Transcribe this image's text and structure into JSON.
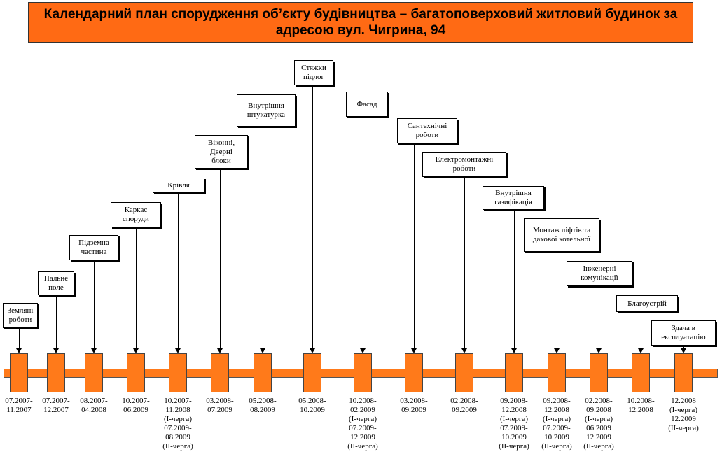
{
  "title": "Календарний план спорудження об’єкту будівництва – багатоповерховий житловий будинок за адресою вул. Чигрина, 94",
  "stages": [
    {
      "label": "Земляні\nроботи",
      "dates": "07.2007-\n11.2007"
    },
    {
      "label": "Пальне\nполе",
      "dates": "07.2007-\n12.2007"
    },
    {
      "label": "Підземна\nчастина",
      "dates": "08.2007-\n04.2008"
    },
    {
      "label": "Каркас\nспоруди",
      "dates": "10.2007-\n06.2009"
    },
    {
      "label": "Крівля",
      "dates": "10.2007-\n11.2008\n(I-черга)\n07.2009-\n08.2009\n(II-черга)"
    },
    {
      "label": "Віконні,\nДверні\nблоки",
      "dates": "03.2008-\n07.2009"
    },
    {
      "label": "Внутрішня\nштукатурка",
      "dates": "05.2008-\n08.2009"
    },
    {
      "label": "Стяжки\nпідлог",
      "dates": "05.2008-\n10.2009"
    },
    {
      "label": "Фасад",
      "dates": "10.2008-\n02.2009\n(I-черга)\n07.2009-\n12.2009\n(II-черга)"
    },
    {
      "label": "Сантехнічні\nроботи",
      "dates": "03.2008-\n09.2009"
    },
    {
      "label": "Електромонтажні\nроботи",
      "dates": "02.2008-\n09.2009"
    },
    {
      "label": "Внутрішня\nгазифікація",
      "dates": "09.2008-\n12.2008\n(I-черга)\n07.2009-\n10.2009\n(II-черга)"
    },
    {
      "label": "Монтаж ліфтів та\nдахової котельної",
      "dates": "09.2008-\n12.2008\n(I-черга)\n07.2009-\n10.2009\n(II-черга)"
    },
    {
      "label": "Інженерні\nкомунікації",
      "dates": "02.2008-\n09.2008\n(I-черга)\n06.2009\n12.2009\n(II-черга)"
    },
    {
      "label": "Благоустрій",
      "dates": "10.2008-\n12.2008"
    },
    {
      "label": "Здача в\nексплуатацію",
      "dates": "12.2008\n(I-черга)\n12.2009\n(II-черга)"
    }
  ],
  "colors": {
    "accent": "#ff7a1a",
    "title_bg": "#ff6a14"
  }
}
